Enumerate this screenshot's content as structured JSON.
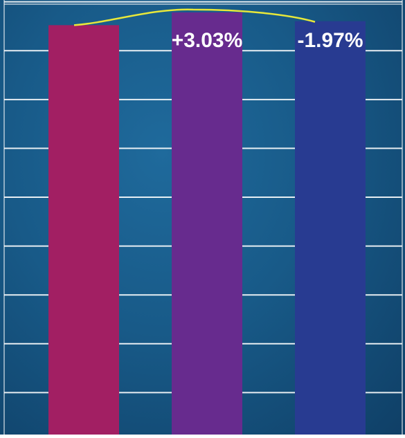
{
  "chart_data": {
    "type": "bar",
    "categories": [
      "",
      "",
      ""
    ],
    "values": [
      94.6,
      97.5,
      95.5
    ],
    "ylim": [
      0,
      100
    ],
    "grid": true,
    "bar_colors": [
      "#a21f63",
      "#672b8e",
      "#283b91"
    ],
    "annotations": [
      "",
      "+3.03%",
      "-1.97%"
    ],
    "trend_line": true,
    "trend_color": "#e8e83a",
    "background_color": "#185a88",
    "grid_color": "#ffffff"
  }
}
